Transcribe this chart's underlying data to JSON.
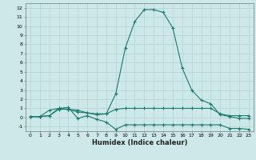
{
  "xlabel": "Humidex (Indice chaleur)",
  "xlim": [
    -0.5,
    23.5
  ],
  "ylim": [
    -1.5,
    12.5
  ],
  "yticks": [
    -1,
    0,
    1,
    2,
    3,
    4,
    5,
    6,
    7,
    8,
    9,
    10,
    11,
    12
  ],
  "xticks": [
    0,
    1,
    2,
    3,
    4,
    5,
    6,
    7,
    8,
    9,
    10,
    11,
    12,
    13,
    14,
    15,
    16,
    17,
    18,
    19,
    20,
    21,
    22,
    23
  ],
  "bg_color": "#cce8e8",
  "line_color": "#1a7a6e",
  "grid_color": "#b8d4d4",
  "series": [
    {
      "x": [
        0,
        1,
        2,
        3,
        4,
        5,
        6,
        7,
        8,
        9,
        10,
        11,
        12,
        13,
        14,
        15,
        16,
        17,
        18,
        19,
        20,
        21,
        22,
        23
      ],
      "y": [
        0.1,
        0.1,
        0.2,
        1.0,
        0.9,
        0.8,
        0.5,
        0.4,
        0.4,
        2.6,
        7.6,
        10.5,
        11.8,
        11.8,
        11.5,
        9.8,
        5.4,
        3.0,
        1.9,
        1.5,
        0.3,
        0.1,
        -0.1,
        -0.1
      ]
    },
    {
      "x": [
        0,
        1,
        2,
        3,
        4,
        5,
        6,
        7,
        8,
        9,
        10,
        11,
        12,
        13,
        14,
        15,
        16,
        17,
        18,
        19,
        20,
        21,
        22,
        23
      ],
      "y": [
        0.1,
        0.1,
        0.8,
        1.0,
        1.1,
        -0.1,
        0.2,
        -0.2,
        -0.5,
        -1.3,
        -0.8,
        -0.8,
        -0.8,
        -0.8,
        -0.8,
        -0.8,
        -0.8,
        -0.8,
        -0.8,
        -0.8,
        -0.8,
        -1.2,
        -1.2,
        -1.3
      ]
    },
    {
      "x": [
        0,
        1,
        2,
        3,
        4,
        5,
        6,
        7,
        8,
        9,
        10,
        11,
        12,
        13,
        14,
        15,
        16,
        17,
        18,
        19,
        20,
        21,
        22,
        23
      ],
      "y": [
        0.1,
        0.1,
        0.2,
        0.9,
        0.9,
        0.6,
        0.5,
        0.3,
        0.4,
        0.9,
        1.0,
        1.0,
        1.0,
        1.0,
        1.0,
        1.0,
        1.0,
        1.0,
        1.0,
        1.0,
        0.4,
        0.2,
        0.2,
        0.2
      ]
    }
  ]
}
